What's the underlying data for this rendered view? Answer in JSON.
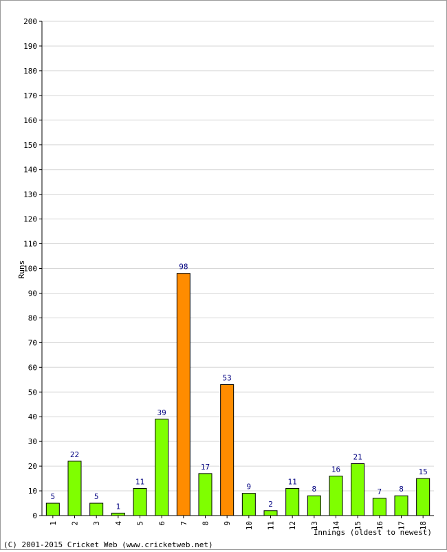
{
  "chart_data": {
    "type": "bar",
    "ylabel": "Runs",
    "xlabel": "Innings (oldest to newest)",
    "ylim": [
      0,
      200
    ],
    "ytick_step": 10,
    "grid": true,
    "categories": [
      "1",
      "2",
      "3",
      "4",
      "5",
      "6",
      "7",
      "8",
      "9",
      "10",
      "11",
      "12",
      "13",
      "14",
      "15",
      "16",
      "17",
      "18"
    ],
    "values": [
      5,
      22,
      5,
      1,
      11,
      39,
      98,
      17,
      53,
      9,
      2,
      11,
      8,
      16,
      21,
      7,
      8,
      15
    ],
    "bar_colors": [
      "#7fff00",
      "#7fff00",
      "#7fff00",
      "#7fff00",
      "#7fff00",
      "#7fff00",
      "#ff8c00",
      "#7fff00",
      "#ff8c00",
      "#7fff00",
      "#7fff00",
      "#7fff00",
      "#7fff00",
      "#7fff00",
      "#7fff00",
      "#7fff00",
      "#7fff00",
      "#7fff00"
    ],
    "value_label_color": "#000080"
  },
  "footer": {
    "copyright": "(C) 2001-2015 Cricket Web (www.cricketweb.net)"
  }
}
